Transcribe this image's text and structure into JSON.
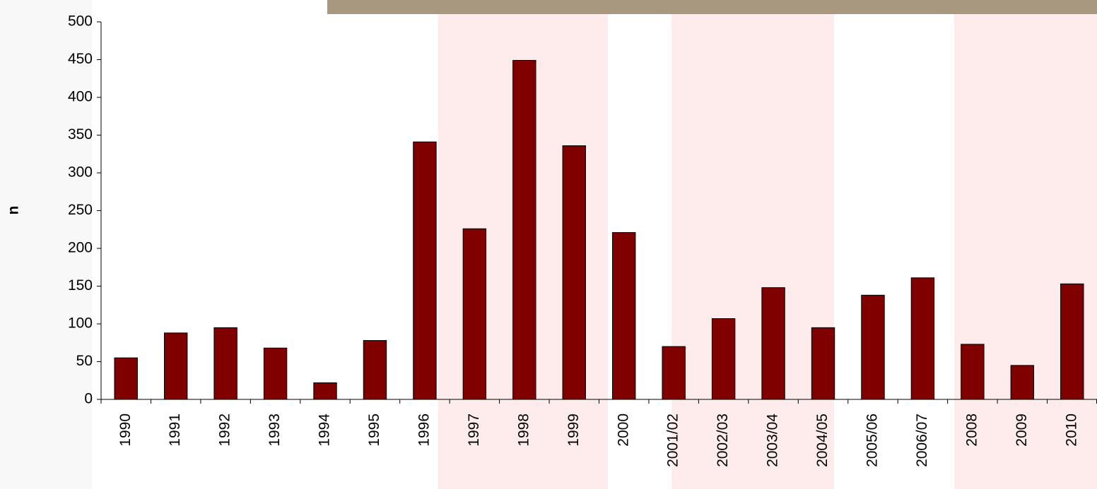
{
  "chart_data": {
    "type": "bar",
    "y_label": "n",
    "categories": [
      "1990",
      "1991",
      "1992",
      "1993",
      "1994",
      "1995",
      "1996",
      "1997",
      "1998",
      "1999",
      "2000",
      "2001/02",
      "2002/03",
      "2003/04",
      "2004/05",
      "2005/06",
      "2006/07",
      "2008",
      "2009",
      "2010"
    ],
    "values": [
      55,
      88,
      95,
      68,
      22,
      78,
      341,
      226,
      449,
      336,
      221,
      70,
      107,
      148,
      95,
      138,
      161,
      73,
      45,
      153
    ],
    "color": "#800000",
    "ylim": [
      0,
      500
    ],
    "yticks": [
      0,
      50,
      100,
      150,
      200,
      250,
      300,
      350,
      400,
      450,
      500
    ]
  }
}
